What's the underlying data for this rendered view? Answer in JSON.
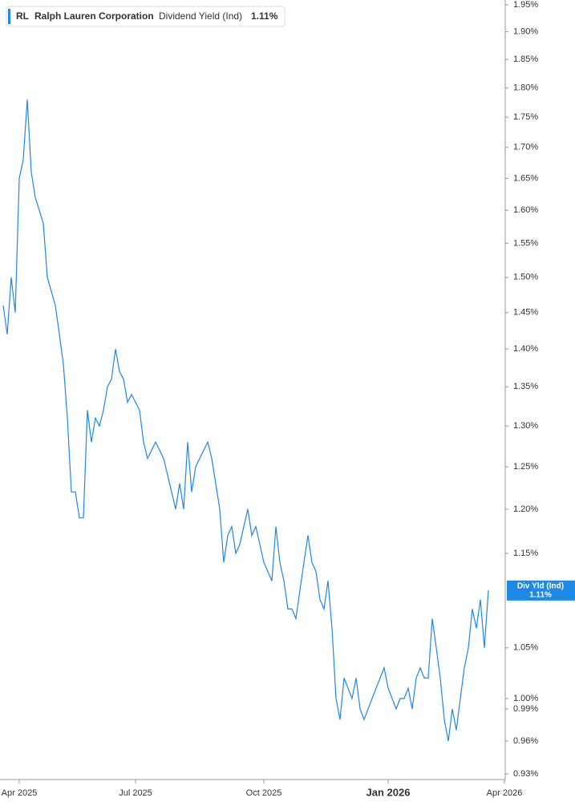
{
  "chart_data": {
    "type": "line",
    "legend": {
      "ticker": "RL",
      "name": "Ralph Lauren Corporation",
      "metric": "Dividend Yield (Ind)"
    },
    "current": {
      "value": 1.11,
      "label": "1.11%"
    },
    "tag_label": "Div Yld (Ind)",
    "log_scale": true,
    "color": "#1e88e5",
    "categories": [
      null,
      null,
      null,
      null,
      "Apr 2025",
      null,
      null,
      null,
      null,
      null,
      null,
      null,
      null,
      null,
      null,
      null,
      null,
      null,
      null,
      null,
      null,
      null,
      null,
      null,
      null,
      null,
      null,
      null,
      null,
      null,
      null,
      null,
      null,
      "Jul 2025",
      null,
      null,
      null,
      null,
      null,
      null,
      null,
      null,
      null,
      null,
      null,
      null,
      null,
      null,
      null,
      null,
      null,
      null,
      null,
      null,
      null,
      null,
      null,
      null,
      null,
      null,
      null,
      null,
      null,
      null,
      null,
      "Oct 2025",
      null,
      null,
      null,
      null,
      null,
      null,
      null,
      null,
      null,
      null,
      null,
      null,
      null,
      null,
      null,
      null,
      null,
      null,
      null,
      null,
      null,
      null,
      null,
      null,
      null,
      null,
      null,
      null,
      null,
      null,
      "Jan 2026",
      null,
      null,
      null,
      null,
      null,
      null,
      null,
      null,
      null,
      null,
      null,
      null,
      null,
      null,
      null,
      null,
      null,
      null,
      null,
      null,
      null,
      null,
      null,
      null,
      null,
      null,
      null,
      null,
      "Apr 2026"
    ],
    "values": [
      1.46,
      1.42,
      1.5,
      1.45,
      1.65,
      1.68,
      1.78,
      1.66,
      1.62,
      1.6,
      1.58,
      1.5,
      1.48,
      1.46,
      1.42,
      1.38,
      1.31,
      1.22,
      1.22,
      1.19,
      1.19,
      1.32,
      1.28,
      1.31,
      1.3,
      1.32,
      1.35,
      1.36,
      1.4,
      1.37,
      1.36,
      1.33,
      1.34,
      1.33,
      1.32,
      1.28,
      1.26,
      1.27,
      1.28,
      1.27,
      1.26,
      1.24,
      1.22,
      1.2,
      1.23,
      1.2,
      1.28,
      1.22,
      1.25,
      1.26,
      1.27,
      1.28,
      1.26,
      1.23,
      1.2,
      1.14,
      1.17,
      1.18,
      1.15,
      1.16,
      1.18,
      1.2,
      1.17,
      1.18,
      1.16,
      1.14,
      1.13,
      1.12,
      1.18,
      1.14,
      1.12,
      1.09,
      1.09,
      1.08,
      1.11,
      1.14,
      1.17,
      1.14,
      1.13,
      1.1,
      1.09,
      1.12,
      1.07,
      1.0,
      0.98,
      1.02,
      1.01,
      1.0,
      1.02,
      0.99,
      0.98,
      0.99,
      1.0,
      1.01,
      1.02,
      1.03,
      1.01,
      1.0,
      0.99,
      1.0,
      1.0,
      1.01,
      0.99,
      1.02,
      1.03,
      1.02,
      1.02,
      1.08,
      1.05,
      1.02,
      0.98,
      0.96,
      0.99,
      0.97,
      1.0,
      1.03,
      1.05,
      1.09,
      1.07,
      1.1,
      1.05,
      1.11,
      null,
      null,
      null,
      null
    ],
    "ylim": [
      0.93,
      1.95
    ],
    "yticks": [
      {
        "value": 1.95,
        "label": "1.95%"
      },
      {
        "value": 1.9,
        "label": "1.90%"
      },
      {
        "value": 1.85,
        "label": "1.85%"
      },
      {
        "value": 1.8,
        "label": "1.80%"
      },
      {
        "value": 1.75,
        "label": "1.75%"
      },
      {
        "value": 1.7,
        "label": "1.70%"
      },
      {
        "value": 1.65,
        "label": "1.65%"
      },
      {
        "value": 1.6,
        "label": "1.60%"
      },
      {
        "value": 1.55,
        "label": "1.55%"
      },
      {
        "value": 1.5,
        "label": "1.50%"
      },
      {
        "value": 1.45,
        "label": "1.45%"
      },
      {
        "value": 1.4,
        "label": "1.40%"
      },
      {
        "value": 1.35,
        "label": "1.35%"
      },
      {
        "value": 1.3,
        "label": "1.30%"
      },
      {
        "value": 1.25,
        "label": "1.25%"
      },
      {
        "value": 1.2,
        "label": "1.20%"
      },
      {
        "value": 1.15,
        "label": "1.15%"
      },
      {
        "value": 1.05,
        "label": "1.05%"
      },
      {
        "value": 1.0,
        "label": "1.00%"
      },
      {
        "value": 0.99,
        "label": "0.99%"
      },
      {
        "value": 0.96,
        "label": "0.96%"
      },
      {
        "value": 0.93,
        "label": "0.93%"
      }
    ]
  }
}
